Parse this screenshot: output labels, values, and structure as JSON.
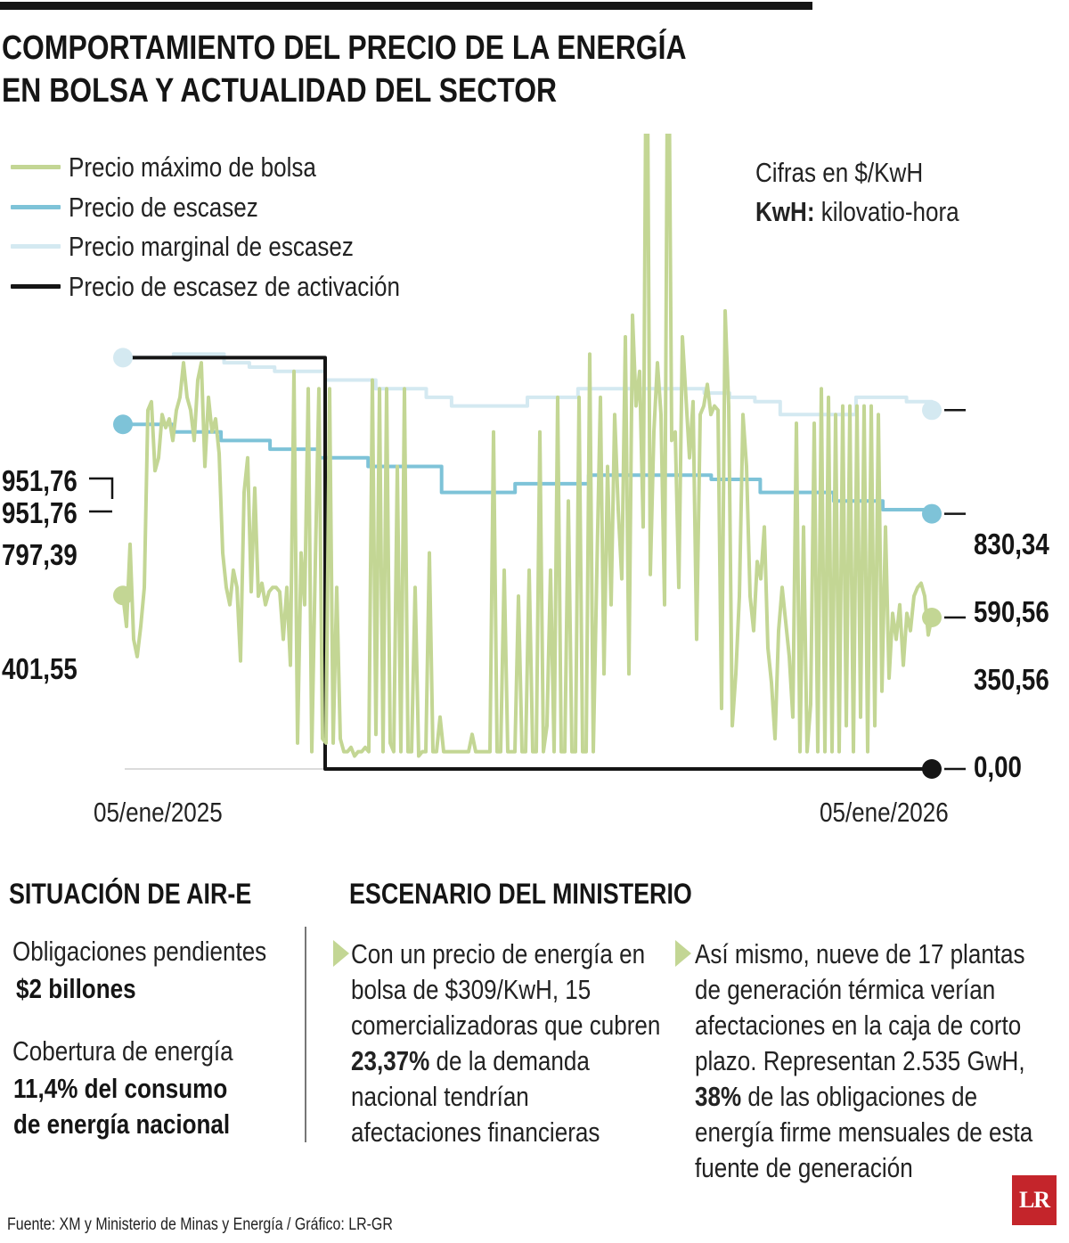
{
  "header": {
    "title_line1": "COMPORTAMIENTO DEL PRECIO DE LA ENERGÍA",
    "title_line2": "EN BOLSA Y ACTUALIDAD DEL SECTOR"
  },
  "units": {
    "line1": "Cifras en $/KwH",
    "line2_bold": "KwH:",
    "line2_rest": " kilovatio-hora"
  },
  "chart_data": {
    "type": "line",
    "x_start_label": "05/ene/2025",
    "x_end_label": "05/ene/2026",
    "ylim": [
      0,
      1400
    ],
    "series": [
      {
        "name": "Precio máximo de bolsa",
        "color": "#c3d694",
        "start_value": "401,55",
        "end_value": "350,56",
        "values": [
          401.55,
          330,
          520,
          300,
          260,
          330,
          420,
          830,
          850,
          690,
          720,
          820,
          790,
          810,
          760,
          830,
          860,
          940,
          860,
          830,
          760,
          900,
          940,
          700,
          860,
          780,
          810,
          730,
          500,
          420,
          380,
          460,
          420,
          250,
          640,
          720,
          410,
          650,
          400,
          430,
          380,
          410,
          420,
          420,
          410,
          300,
          420,
          240,
          920,
          60,
          500,
          380,
          880,
          40,
          480,
          880,
          70,
          60,
          880,
          60,
          420,
          70,
          40,
          40,
          50,
          30,
          40,
          40,
          50,
          40,
          900,
          80,
          880,
          40,
          880,
          60,
          40,
          700,
          40,
          880,
          40,
          40,
          420,
          30,
          40,
          40,
          500,
          40,
          40,
          120,
          40,
          40,
          40,
          40,
          40,
          40,
          40,
          40,
          80,
          40,
          40,
          40,
          40,
          40,
          780,
          40,
          40,
          460,
          40,
          40,
          40,
          400,
          40,
          40,
          460,
          40,
          40,
          780,
          40,
          100,
          460,
          40,
          860,
          40,
          40,
          620,
          40,
          40,
          860,
          40,
          40,
          960,
          40,
          460,
          860,
          220,
          700,
          380,
          820,
          600,
          440,
          1000,
          220,
          1050,
          840,
          920,
          560,
          1920,
          450,
          780,
          940,
          820,
          380,
          1920,
          760,
          780,
          420,
          1000,
          860,
          720,
          850,
          300,
          820,
          840,
          890,
          820,
          840,
          830,
          140,
          1060,
          840,
          100,
          220,
          400,
          820,
          700,
          400,
          320,
          480,
          440,
          560,
          280,
          200,
          70,
          320,
          420,
          340,
          260,
          120,
          800,
          40,
          560,
          40,
          150,
          800,
          40,
          880,
          40,
          860,
          40,
          820,
          40,
          840,
          100,
          840,
          40,
          840,
          120,
          840,
          40,
          840,
          100,
          820,
          180,
          560,
          210,
          360,
          300,
          380,
          240,
          360,
          320,
          400,
          420,
          430,
          400,
          310,
          350.56
        ]
      },
      {
        "name": "Precio de escasez",
        "color": "#7ec3d8",
        "start_value": "797,39",
        "end_value": "590,56",
        "values": [
          797.39,
          797.39,
          780,
          780,
          760,
          760,
          740,
          740,
          720,
          720,
          700,
          700,
          700,
          640,
          640,
          640,
          660,
          660,
          660,
          680,
          680,
          680,
          680,
          680,
          670,
          670,
          640,
          640,
          640,
          620,
          620,
          600,
          600,
          590.56
        ]
      },
      {
        "name": "Precio marginal de escasez",
        "color": "#d4e9f1",
        "start_value": "951,76",
        "end_value": "830,34",
        "values": [
          951.76,
          951.76,
          960,
          960,
          940,
          930,
          920,
          920,
          900,
          900,
          880,
          880,
          860,
          840,
          840,
          840,
          860,
          860,
          880,
          880,
          880,
          880,
          880,
          870,
          860,
          850,
          820,
          820,
          820,
          860,
          860,
          850,
          830.34
        ]
      },
      {
        "name": "Precio de escasez de activación",
        "color": "#151515",
        "start_value": "951,76",
        "end_value": "0,00",
        "values": [
          951.76,
          951.76,
          951.76,
          951.76,
          0,
          0,
          0,
          0,
          0,
          0,
          0,
          0,
          0,
          0,
          0,
          0,
          0
        ]
      }
    ]
  },
  "situacion": {
    "title": "SITUACIÓN DE AIR-E",
    "item1_label": "Obligaciones pendientes",
    "item1_value": "$2 billones",
    "item2_label": "Cobertura de energía",
    "item2_value_line1": "11,4% del consumo",
    "item2_value_line2": "de energía nacional"
  },
  "escenario": {
    "title": "ESCENARIO DEL MINISTERIO",
    "col1": {
      "line1": "Con un precio de energía en",
      "line2": "bolsa de $309/KwH, 15",
      "line3": "comercializadoras que cubren",
      "line4_bold": "23,37%",
      "line4_rest": " de la demanda",
      "line5": "nacional tendrían",
      "line6": "afectaciones financieras"
    },
    "col2": {
      "line1": "Así mismo, nueve de 17 plantas",
      "line2": "de generación térmica verían",
      "line3": "afectaciones en la caja de corto",
      "line4": "plazo. Representan 2.535 GwH,",
      "line5_bold": "38%",
      "line5_rest": " de las obligaciones de",
      "line6": "energía firme mensuales de esta",
      "line7": "fuente de generación"
    }
  },
  "footer": {
    "source": "Fuente: XM y Ministerio de Minas y Energía / Gráfico: LR-GR",
    "logo": "LR"
  }
}
